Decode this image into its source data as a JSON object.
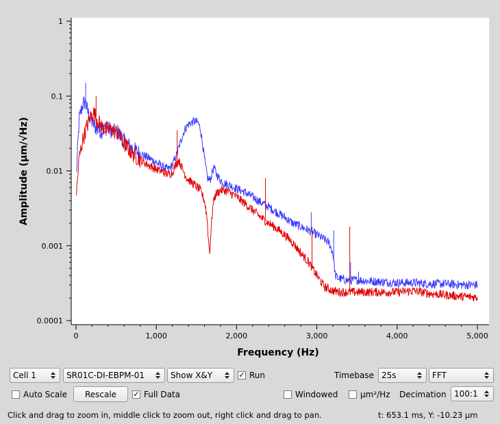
{
  "chart_data": {
    "type": "line",
    "xlabel": "Frequency (Hz)",
    "ylabel": "Amplitude (µm/√Hz)",
    "x_ticks": [
      "0",
      "1,000",
      "2,000",
      "3,000",
      "4,000",
      "5,000"
    ],
    "x_tick_values": [
      0,
      1000,
      2000,
      3000,
      4000,
      5000
    ],
    "y_ticks": [
      "1",
      "0.1",
      "0.01",
      "0.001",
      "0.0001"
    ],
    "y_tick_values": [
      1,
      0.1,
      0.01,
      0.001,
      0.0001
    ],
    "xlim": [
      0,
      5100
    ],
    "ylim": [
      0.0001,
      1
    ],
    "yscale": "log",
    "grid": false,
    "series": [
      {
        "color": "#3b3bff",
        "x": [
          5,
          40,
          80,
          110,
          150,
          200,
          260,
          320,
          380,
          450,
          520,
          600,
          700,
          800,
          900,
          1000,
          1100,
          1150,
          1200,
          1250,
          1300,
          1350,
          1400,
          1450,
          1480,
          1520,
          1550,
          1580,
          1610,
          1640,
          1660,
          1680,
          1700,
          1720,
          1750,
          1800,
          1850,
          1900,
          1950,
          2000,
          2100,
          2200,
          2300,
          2400,
          2500,
          2600,
          2700,
          2800,
          2900,
          3000,
          3050,
          3100,
          3150,
          3200,
          3230,
          3260,
          3300,
          3350,
          3400,
          3500,
          3600,
          3800,
          4000,
          4200,
          4400,
          4600,
          4800,
          5000
        ],
        "y": [
          0.009,
          0.05,
          0.075,
          0.085,
          0.06,
          0.045,
          0.036,
          0.034,
          0.038,
          0.034,
          0.033,
          0.025,
          0.02,
          0.017,
          0.015,
          0.013,
          0.011,
          0.0105,
          0.012,
          0.016,
          0.024,
          0.035,
          0.042,
          0.045,
          0.046,
          0.044,
          0.036,
          0.022,
          0.012,
          0.008,
          0.0075,
          0.008,
          0.01,
          0.011,
          0.009,
          0.0075,
          0.0068,
          0.0065,
          0.0062,
          0.0058,
          0.0052,
          0.0045,
          0.0038,
          0.0033,
          0.0028,
          0.0024,
          0.002,
          0.0018,
          0.0016,
          0.0014,
          0.0013,
          0.0012,
          0.0011,
          0.0008,
          0.0004,
          0.00037,
          0.00036,
          0.00035,
          0.00034,
          0.00035,
          0.00034,
          0.00033,
          0.00032,
          0.00032,
          0.00031,
          0.00031,
          0.0003,
          0.0003
        ]
      },
      {
        "color": "#e00000",
        "x": [
          5,
          40,
          80,
          120,
          170,
          220,
          280,
          330,
          380,
          450,
          520,
          600,
          700,
          800,
          900,
          1000,
          1100,
          1150,
          1200,
          1240,
          1280,
          1320,
          1380,
          1440,
          1500,
          1550,
          1600,
          1630,
          1650,
          1665,
          1680,
          1700,
          1720,
          1750,
          1800,
          1850,
          1900,
          1950,
          2000,
          2100,
          2200,
          2300,
          2400,
          2500,
          2600,
          2700,
          2800,
          2900,
          3000,
          3050,
          3100,
          3200,
          3300,
          3380,
          3450,
          3600,
          3800,
          4000,
          4200,
          4400,
          4600,
          4800,
          5000
        ],
        "y": [
          0.005,
          0.015,
          0.025,
          0.035,
          0.05,
          0.06,
          0.045,
          0.038,
          0.036,
          0.035,
          0.032,
          0.023,
          0.017,
          0.014,
          0.012,
          0.0105,
          0.0095,
          0.009,
          0.0095,
          0.012,
          0.014,
          0.011,
          0.008,
          0.007,
          0.0062,
          0.0055,
          0.004,
          0.0025,
          0.0012,
          0.0008,
          0.0015,
          0.003,
          0.0043,
          0.005,
          0.0055,
          0.0055,
          0.0052,
          0.0049,
          0.0045,
          0.0037,
          0.003,
          0.0024,
          0.002,
          0.0017,
          0.0014,
          0.0011,
          0.0008,
          0.0006,
          0.0004,
          0.00033,
          0.00028,
          0.00025,
          0.00024,
          0.00024,
          0.00024,
          0.00024,
          0.00024,
          0.00024,
          0.00025,
          0.00023,
          0.00022,
          0.00021,
          0.000205
        ]
      }
    ],
    "spikes": [
      {
        "series": 1,
        "x": 1260,
        "y": 0.035
      },
      {
        "series": 1,
        "x": 2360,
        "y": 0.008
      },
      {
        "series": 0,
        "x": 2930,
        "y": 0.0028
      },
      {
        "series": 1,
        "x": 2940,
        "y": 0.0018
      },
      {
        "series": 0,
        "x": 3210,
        "y": 0.0016
      },
      {
        "series": 1,
        "x": 3410,
        "y": 0.0018
      },
      {
        "series": 0,
        "x": 3420,
        "y": 0.0006
      },
      {
        "series": 0,
        "x": 3520,
        "y": 0.00045
      },
      {
        "series": 0,
        "x": 120,
        "y": 0.15
      },
      {
        "series": 1,
        "x": 250,
        "y": 0.1
      }
    ]
  },
  "controls": {
    "cell": "Cell 1",
    "device": "SR01C-DI-EBPM-01",
    "show": "Show X&Y",
    "run_label": "Run",
    "run_checked": "✓",
    "timebase_label": "Timebase",
    "timebase_value": "25s",
    "mode": "FFT",
    "auto_scale_label": "Auto Scale",
    "rescale_label": "Rescale",
    "full_data_label": "Full Data",
    "full_data_checked": "✓",
    "windowed_label": "Windowed",
    "psd_label": "µm²/Hz",
    "decimation_label": "Decimation",
    "decimation_value": "100:1"
  },
  "status": {
    "hint": "Click and drag to zoom in, middle click to zoom out, right click and drag to pan.",
    "cursor": "t: 653.1 ms, Y: -10.23 µm"
  }
}
